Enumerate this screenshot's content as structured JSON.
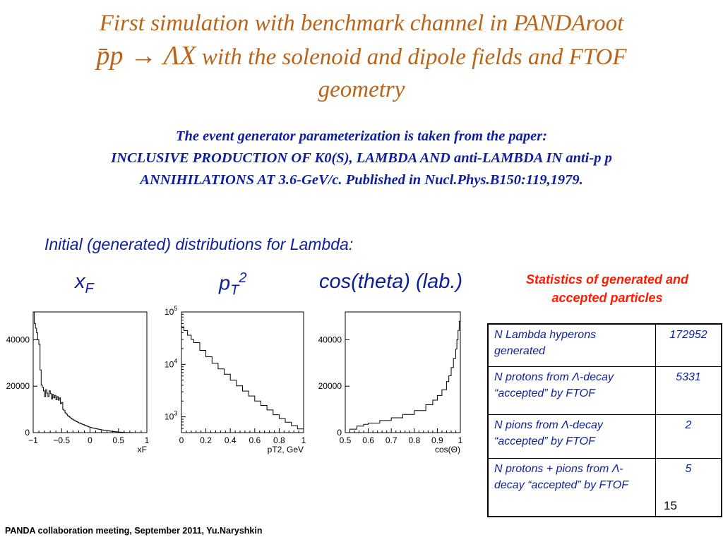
{
  "title": {
    "line1": "First simulation with benchmark channel  in PANDAroot",
    "line2_math": "p̄p → ΛX",
    "line2_text": " with the solenoid and dipole fields and FTOF",
    "line3": "geometry"
  },
  "reference": {
    "line1": "The event generator  parameterization is taken from the paper:",
    "line2": "INCLUSIVE PRODUCTION OF K0(S), LAMBDA AND anti-LAMBDA IN anti-p p",
    "line3": "ANNIHILATIONS AT 3.6-GeV/c. Published in Nucl.Phys.B150:119,1979."
  },
  "subtitle": "Initial (generated) distributions for Lambda:",
  "plot_labels": {
    "xf_main": "x",
    "xf_sub": "F",
    "pt_main": "p",
    "pt_sub": "T",
    "pt_sup": "2",
    "cos": "cos(theta) (lab.)"
  },
  "statistics": {
    "heading_line1": "Statistics of generated and",
    "heading_line2": "accepted particles",
    "rows": [
      {
        "label": "N Lambda hyperons generated",
        "value": "172952"
      },
      {
        "label": "N protons from  Λ-decay “accepted” by FTOF",
        "value": "5331"
      },
      {
        "label": "N pions from  Λ-decay “accepted” by FTOF",
        "value": "2"
      },
      {
        "label": "N protons + pions from Λ-decay “accepted” by FTOF",
        "value": "5"
      }
    ]
  },
  "page_number": "15",
  "footer": "PANDA collaboration meeting,  September 2011, Yu.Naryshkin",
  "chart_data": [
    {
      "type": "line",
      "title": "",
      "xlabel": "xF",
      "ylabel": "",
      "xlim": [
        -1,
        1
      ],
      "ylim": [
        0,
        52000
      ],
      "x_ticks": [
        "−1",
        "−0.5",
        "0",
        "0.5",
        "1"
      ],
      "y_ticks": [
        "0",
        "20000",
        "40000"
      ],
      "series": [
        {
          "x": [
            -1.0,
            -0.98,
            -0.96,
            -0.94,
            -0.92,
            -0.9,
            -0.88,
            -0.86,
            -0.84,
            -0.82,
            -0.8,
            -0.78,
            -0.76,
            -0.74,
            -0.72,
            -0.7,
            -0.68,
            -0.66,
            -0.64,
            -0.62,
            -0.6,
            -0.58,
            -0.56,
            -0.54,
            -0.52,
            -0.5,
            -0.48,
            -0.46,
            -0.44,
            -0.42,
            -0.4,
            -0.38,
            -0.36,
            -0.34,
            -0.32,
            -0.3,
            -0.28,
            -0.26,
            -0.24,
            -0.22,
            -0.2,
            -0.18,
            -0.16,
            -0.14,
            -0.12,
            -0.1,
            -0.08,
            -0.06,
            -0.04,
            -0.02,
            0.0,
            0.02,
            0.04,
            0.06,
            0.08,
            0.1,
            0.12,
            0.14,
            0.16,
            0.18,
            0.2,
            0.22,
            0.24,
            0.26,
            0.28,
            0.3,
            0.32,
            0.34,
            0.36,
            0.38,
            0.4,
            0.42,
            0.44,
            0.46,
            0.48,
            0.5,
            0.55,
            0.6,
            0.65,
            0.7,
            0.75,
            0.8,
            0.9,
            1.0
          ],
          "y": [
            52000,
            47000,
            45000,
            43000,
            40000,
            38000,
            27000,
            20500,
            19500,
            18000,
            15500,
            18500,
            17000,
            15500,
            18000,
            16800,
            14500,
            16500,
            15000,
            16000,
            14200,
            15500,
            14000,
            15000,
            12500,
            13000,
            10000,
            9500,
            8500,
            8000,
            7300,
            7000,
            6700,
            6200,
            5800,
            5500,
            5200,
            5000,
            4700,
            4500,
            4200,
            4000,
            3800,
            3600,
            3400,
            3200,
            3000,
            2800,
            2600,
            2400,
            2300,
            2100,
            2000,
            1900,
            1800,
            1700,
            1600,
            1500,
            1400,
            1300,
            1200,
            1100,
            1000,
            950,
            900,
            850,
            800,
            700,
            600,
            550,
            500,
            450,
            400,
            350,
            300,
            250,
            150,
            80,
            40,
            20,
            10,
            0,
            0,
            0
          ]
        }
      ]
    },
    {
      "type": "line",
      "title": "",
      "xlabel": "pT2, GeV",
      "ylabel": "",
      "log_y": true,
      "xlim": [
        0,
        1
      ],
      "ylim": [
        500,
        100000
      ],
      "x_ticks": [
        "0",
        "0.2",
        "0.4",
        "0.6",
        "0.8",
        "1"
      ],
      "y_ticks": [
        "10^3",
        "10^4",
        "10^5"
      ],
      "series": [
        {
          "x": [
            0.0,
            0.02,
            0.05,
            0.08,
            0.1,
            0.15,
            0.2,
            0.25,
            0.3,
            0.35,
            0.4,
            0.45,
            0.5,
            0.55,
            0.6,
            0.65,
            0.7,
            0.75,
            0.8,
            0.85,
            0.9,
            0.95,
            1.0
          ],
          "y": [
            52000,
            44000,
            36000,
            30000,
            26000,
            18500,
            14000,
            10500,
            8200,
            6500,
            5000,
            3900,
            3100,
            2500,
            2000,
            1650,
            1350,
            1100,
            930,
            790,
            680,
            590,
            500
          ]
        }
      ]
    },
    {
      "type": "line",
      "title": "",
      "xlabel": "cos(Θ)",
      "ylabel": "",
      "xlim": [
        0.5,
        1
      ],
      "ylim": [
        0,
        52000
      ],
      "x_ticks": [
        "0.5",
        "0.6",
        "0.7",
        "0.8",
        "0.9",
        "1"
      ],
      "y_ticks": [
        "0",
        "20000",
        "40000"
      ],
      "series": [
        {
          "x": [
            0.5,
            0.52,
            0.55,
            0.58,
            0.6,
            0.65,
            0.7,
            0.75,
            0.8,
            0.85,
            0.88,
            0.9,
            0.92,
            0.94,
            0.95,
            0.96,
            0.97,
            0.98,
            0.985,
            0.99,
            0.995,
            1.0
          ],
          "y": [
            0,
            1500,
            2800,
            3600,
            4100,
            5200,
            6400,
            7800,
            9500,
            12000,
            14000,
            16000,
            18500,
            22000,
            24500,
            28000,
            32000,
            36000,
            40000,
            44000,
            48000,
            50000
          ]
        }
      ]
    }
  ]
}
